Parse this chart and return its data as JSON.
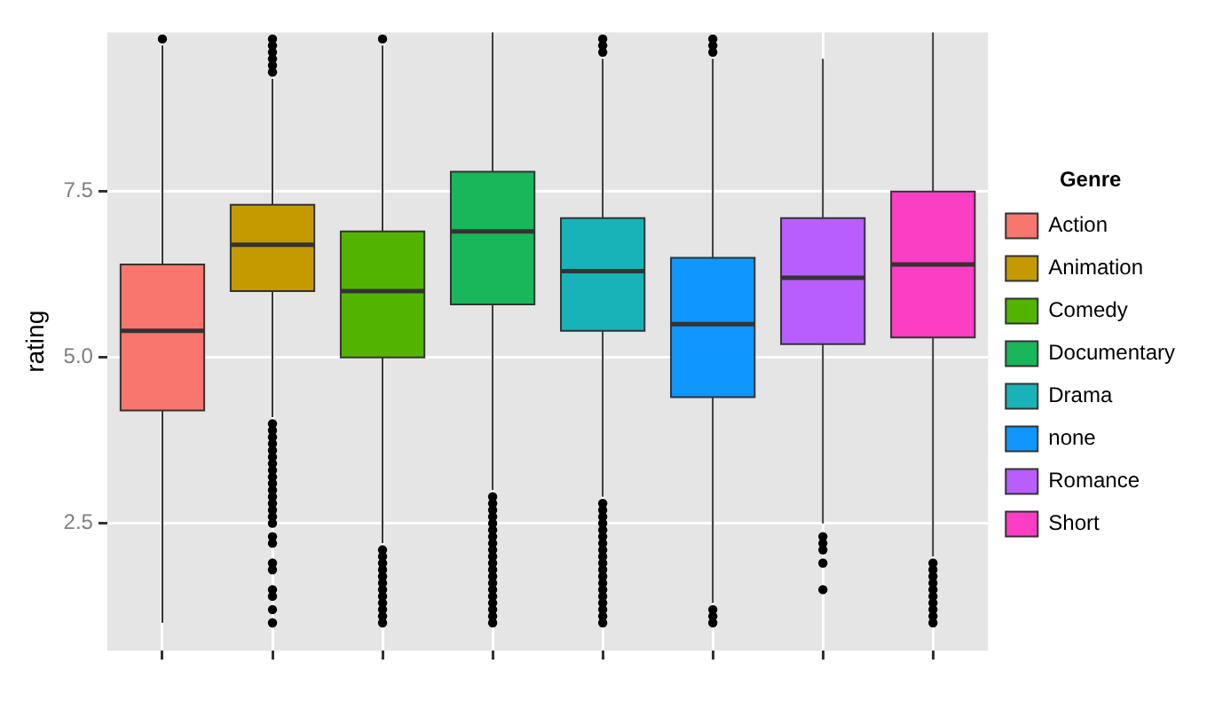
{
  "chart_data": {
    "type": "box",
    "ylabel": "rating",
    "legend_title": "Genre",
    "legend": "right",
    "grid": true,
    "categories": [
      null,
      null,
      null,
      null,
      null,
      null,
      null,
      null
    ],
    "ylim": [
      0.58,
      9.9
    ],
    "yticks": [
      2.5,
      {
        "value": 5,
        "label": "5.0"
      },
      7.5
    ],
    "series": [
      {
        "name": "Action",
        "color": "#f8766d",
        "boxes": [
          {
            "low": 1.0,
            "q1": 4.2,
            "median": 5.4,
            "q3": 6.4,
            "high": 9.7,
            "outliers": [
              9.8
            ]
          },
          null,
          null,
          null,
          null,
          null,
          null,
          null
        ]
      },
      {
        "name": "Animation",
        "color": "#c49a00",
        "boxes": [
          null,
          {
            "low": 4.1,
            "q1": 6.0,
            "median": 6.7,
            "q3": 7.3,
            "high": 9.2,
            "outliers": [
              9.3,
              9.4,
              9.5,
              9.6,
              9.7,
              9.8,
              4.0,
              3.9,
              3.8,
              3.7,
              3.6,
              3.5,
              3.4,
              3.3,
              3.2,
              3.1,
              3.0,
              2.9,
              2.8,
              2.7,
              2.6,
              2.5,
              2.3,
              2.2,
              1.9,
              1.8,
              1.5,
              1.4,
              1.2,
              1.0
            ]
          },
          null,
          null,
          null,
          null,
          null,
          null
        ]
      },
      {
        "name": "Comedy",
        "color": "#53b400",
        "boxes": [
          null,
          null,
          {
            "low": 2.2,
            "q1": 5.0,
            "median": 6.0,
            "q3": 6.9,
            "high": 9.7,
            "outliers": [
              9.8,
              2.1,
              2.0,
              1.9,
              1.8,
              1.7,
              1.6,
              1.5,
              1.4,
              1.3,
              1.2,
              1.1,
              1.0
            ]
          },
          null,
          null,
          null,
          null,
          null
        ]
      },
      {
        "name": "Documentary",
        "color": "#19b75a",
        "boxes": [
          null,
          null,
          null,
          {
            "low": 3.0,
            "q1": 5.8,
            "median": 6.9,
            "q3": 7.8,
            "high": 9.9,
            "outliers": [
              2.9,
              2.8,
              2.7,
              2.6,
              2.5,
              2.4,
              2.3,
              2.2,
              2.1,
              2.0,
              1.9,
              1.8,
              1.7,
              1.6,
              1.5,
              1.4,
              1.3,
              1.2,
              1.1,
              1.0
            ]
          },
          null,
          null,
          null,
          null
        ]
      },
      {
        "name": "Drama",
        "color": "#17b3b8",
        "boxes": [
          null,
          null,
          null,
          null,
          {
            "low": 2.9,
            "q1": 5.4,
            "median": 6.3,
            "q3": 7.1,
            "high": 9.5,
            "outliers": [
              9.6,
              9.7,
              9.8,
              2.8,
              2.7,
              2.6,
              2.5,
              2.4,
              2.3,
              2.2,
              2.1,
              2.0,
              1.9,
              1.8,
              1.7,
              1.6,
              1.5,
              1.4,
              1.3,
              1.2,
              1.1,
              1.0
            ]
          },
          null,
          null,
          null
        ]
      },
      {
        "name": "none",
        "color": "#0f97ff",
        "boxes": [
          null,
          null,
          null,
          null,
          null,
          {
            "low": 1.3,
            "q1": 4.4,
            "median": 5.5,
            "q3": 6.5,
            "high": 9.5,
            "outliers": [
              9.6,
              9.7,
              9.8,
              1.2,
              1.1,
              1.0
            ]
          },
          null,
          null
        ]
      },
      {
        "name": "Romance",
        "color": "#b85eff",
        "boxes": [
          null,
          null,
          null,
          null,
          null,
          null,
          {
            "low": 2.5,
            "q1": 5.2,
            "median": 6.2,
            "q3": 7.1,
            "high": 9.5,
            "outliers": [
              2.3,
              2.2,
              2.1,
              1.9,
              1.5
            ]
          },
          null
        ]
      },
      {
        "name": "Short",
        "color": "#fb3ec3",
        "boxes": [
          null,
          null,
          null,
          null,
          null,
          null,
          null,
          {
            "low": 2.0,
            "q1": 5.3,
            "median": 6.4,
            "q3": 7.5,
            "high": 9.9,
            "outliers": [
              1.9,
              1.8,
              1.7,
              1.6,
              1.5,
              1.4,
              1.3,
              1.2,
              1.1,
              1.0
            ]
          }
        ]
      }
    ]
  }
}
